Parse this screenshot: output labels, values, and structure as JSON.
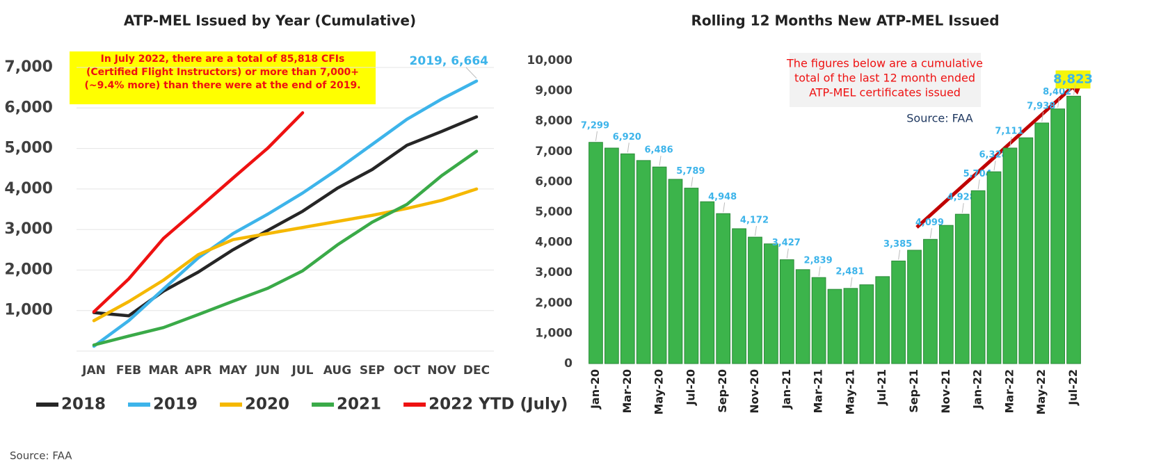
{
  "chart_data": [
    {
      "type": "line",
      "title": "ATP-MEL Issued by Year (Cumulative)",
      "categories": [
        "JAN",
        "FEB",
        "MAR",
        "APR",
        "MAY",
        "JUN",
        "JUL",
        "AUG",
        "SEP",
        "OCT",
        "NOV",
        "DEC"
      ],
      "series": [
        {
          "name": "2018",
          "color": "#262626",
          "values": [
            950,
            870,
            1480,
            1950,
            2500,
            2980,
            3450,
            4020,
            4480,
            5080,
            5420,
            5780
          ]
        },
        {
          "name": "2019",
          "color": "#3db4ea",
          "values": [
            120,
            750,
            1530,
            2300,
            2900,
            3380,
            3900,
            4480,
            5100,
            5720,
            6220,
            6664
          ]
        },
        {
          "name": "2020",
          "color": "#f5b800",
          "values": [
            750,
            1220,
            1750,
            2380,
            2750,
            2900,
            3050,
            3200,
            3350,
            3520,
            3720,
            4000
          ]
        },
        {
          "name": "2021",
          "color": "#3aaa48",
          "values": [
            150,
            370,
            580,
            900,
            1230,
            1550,
            1980,
            2620,
            3180,
            3620,
            4330,
            4930
          ]
        },
        {
          "name": "2022 YTD (July)",
          "color": "#ee1111",
          "values": [
            970,
            1780,
            2780,
            3520,
            4270,
            5010,
            5880,
            null,
            null,
            null,
            null,
            null
          ]
        }
      ],
      "ylim": [
        0,
        7000
      ],
      "yticks": [
        {
          "value": 1000,
          "label": "1,000"
        },
        {
          "value": 2000,
          "label": "2,000"
        },
        {
          "value": 3000,
          "label": "3,000"
        },
        {
          "value": 4000,
          "label": "4,000"
        },
        {
          "value": 5000,
          "label": "5,000"
        },
        {
          "value": 6000,
          "label": "6,000"
        },
        {
          "value": 7000,
          "label": "7,000"
        }
      ],
      "grid": true,
      "legend": "bottom",
      "callout": [
        "In July 2022, there are a total of 85,818 CFIs",
        "(Certified Flight Instructors) or more than 7,000+",
        "(~9.4% more) than there were at the end of 2019."
      ],
      "point_label": "2019,  6,664",
      "source": "Source: FAA"
    },
    {
      "type": "bar",
      "title": "Rolling 12 Months New ATP-MEL Issued",
      "color": "#3cb44b",
      "categories": [
        "Jan-20",
        null,
        "Mar-20",
        null,
        "May-20",
        null,
        "Jul-20",
        null,
        "Sep-20",
        null,
        "Nov-20",
        null,
        "Jan-21",
        null,
        "Mar-21",
        null,
        "May-21",
        null,
        "Jul-21",
        null,
        "Sep-21",
        null,
        "Nov-21",
        null,
        "Jan-22",
        null,
        "Mar-22",
        null,
        "May-22",
        null,
        "Jul-22"
      ],
      "values": [
        7299,
        7110,
        6920,
        6700,
        6486,
        6080,
        5789,
        5340,
        4948,
        4450,
        4172,
        3950,
        3427,
        3100,
        2839,
        2450,
        2481,
        2600,
        2870,
        3385,
        3740,
        4099,
        4560,
        4928,
        5704,
        6328,
        7111,
        7450,
        7938,
        8402,
        8823
      ],
      "value_labels": [
        "7,299",
        null,
        "6,920",
        null,
        "6,486",
        null,
        "5,789",
        null,
        "4,948",
        null,
        "4,172",
        null,
        "3,427",
        null,
        "2,839",
        null,
        "2,481",
        null,
        null,
        "3,385",
        null,
        "4,099",
        null,
        "4,928",
        "5,704",
        "6,328",
        "7,111",
        null,
        "7,938",
        "8,402",
        "8,823"
      ],
      "ylim": [
        0,
        10000
      ],
      "yticks": [
        0,
        {
          "value": 1000,
          "label": "1,000"
        },
        {
          "value": 2000,
          "label": "2,000"
        },
        {
          "value": 3000,
          "label": "3,000"
        },
        {
          "value": 4000,
          "label": "4,000"
        },
        {
          "value": 5000,
          "label": "5,000"
        },
        {
          "value": 6000,
          "label": "6,000"
        },
        {
          "value": 7000,
          "label": "7,000"
        },
        {
          "value": 8000,
          "label": "8,000"
        },
        {
          "value": 9000,
          "label": "9,000"
        },
        {
          "value": 10000,
          "label": "10,000"
        }
      ],
      "grid": false,
      "callout": [
        "The figures below are a cumulative",
        "total of the last 12 month ended",
        "ATP-MEL certificates issued"
      ],
      "source": "Source: FAA"
    }
  ]
}
